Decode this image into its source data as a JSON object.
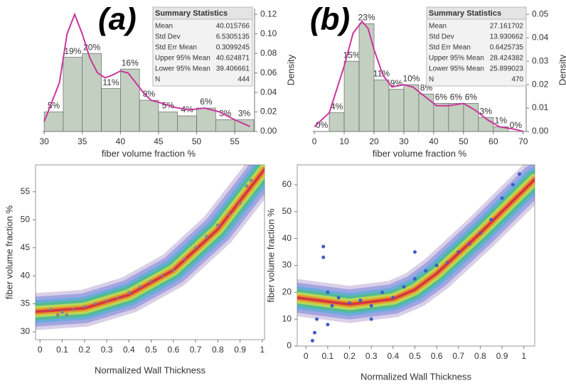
{
  "chart_data": [
    {
      "type": "histogram",
      "panel_label": "(a)",
      "x_label": "fiber volume fraction %",
      "y_label": "Density",
      "y_axis_side": "right",
      "bins": [
        30,
        32.5,
        35,
        37.5,
        40,
        42.5,
        45,
        47.5,
        50,
        52.5,
        55,
        57.5
      ],
      "values": [
        0.02,
        0.076,
        0.08,
        0.044,
        0.064,
        0.032,
        0.02,
        0.016,
        0.024,
        0.012,
        0.012
      ],
      "value_labels": [
        "5%",
        "19%",
        "20%",
        "11%",
        "16%",
        "8%",
        "5%",
        "4%",
        "6%",
        "3%",
        "3%"
      ],
      "color": "#c3cfc0",
      "density_curve": {
        "color": "#c8379b",
        "x": [
          30,
          32,
          33,
          34,
          35,
          36,
          37,
          38,
          39,
          40,
          41,
          42,
          43,
          44,
          45,
          47,
          49,
          51,
          53,
          55,
          57
        ],
        "y": [
          0.01,
          0.05,
          0.1,
          0.12,
          0.1,
          0.075,
          0.06,
          0.055,
          0.058,
          0.062,
          0.06,
          0.05,
          0.04,
          0.032,
          0.03,
          0.025,
          0.022,
          0.024,
          0.02,
          0.012,
          0.005
        ]
      },
      "xlim": [
        29.8,
        57.6
      ],
      "xticks": [
        30,
        35,
        40,
        45,
        50,
        55
      ],
      "ylim": [
        0,
        0.126
      ],
      "yticks": [
        {
          "value": 0,
          "label": "0.00"
        },
        {
          "value": 0.02,
          "label": "0.02"
        },
        {
          "value": 0.04,
          "label": "0.04"
        },
        {
          "value": 0.06,
          "label": "0.06"
        },
        {
          "value": 0.08,
          "label": "0.08"
        },
        {
          "value": 0.1,
          "label": "0.10"
        },
        {
          "value": 0.12,
          "label": "0.12"
        }
      ],
      "summary_statistics": {
        "title": "Summary Statistics",
        "rows": [
          [
            "Mean",
            "40.015766"
          ],
          [
            "Std Dev",
            "6.5305135"
          ],
          [
            "Std Err Mean",
            "0.3099245"
          ],
          [
            "Upper 95% Mean",
            "40.624871"
          ],
          [
            "Lower 95% Mean",
            "39.406661"
          ],
          [
            "N",
            "444"
          ]
        ]
      }
    },
    {
      "type": "histogram",
      "panel_label": "(b)",
      "x_label": "fiber volume fraction %",
      "y_label": "Density",
      "y_axis_side": "right",
      "bins": [
        0,
        5,
        10,
        15,
        20,
        25,
        30,
        35,
        40,
        45,
        50,
        55,
        60,
        65,
        70
      ],
      "values": [
        0,
        0.008,
        0.03,
        0.046,
        0.022,
        0.018,
        0.02,
        0.016,
        0.012,
        0.012,
        0.012,
        0.006,
        0.002,
        0
      ],
      "value_labels": [
        "0%",
        "4%",
        "15%",
        "23%",
        "11%",
        "9%",
        "10%",
        "8%",
        "6%",
        "6%",
        "6%",
        "3%",
        "1%",
        "0%"
      ],
      "color": "#c3cfc0",
      "density_curve": {
        "color": "#c8379b",
        "x": [
          0,
          5,
          10,
          13,
          16,
          18,
          20,
          23,
          26,
          30,
          33,
          37,
          41,
          45,
          50,
          54,
          58,
          62,
          67,
          70
        ],
        "y": [
          0.002,
          0.008,
          0.028,
          0.042,
          0.047,
          0.044,
          0.035,
          0.024,
          0.019,
          0.02,
          0.019,
          0.015,
          0.011,
          0.011,
          0.012,
          0.009,
          0.005,
          0.002,
          0.001,
          0
        ]
      },
      "xlim": [
        -0.5,
        71
      ],
      "xticks": [
        0,
        10,
        20,
        30,
        40,
        50,
        60,
        70
      ],
      "ylim": [
        0,
        0.0525
      ],
      "yticks": [
        {
          "value": 0,
          "label": "0.00"
        },
        0.01,
        0.02,
        0.03,
        0.04,
        0.05
      ],
      "summary_statistics": {
        "title": "Summary Statistics",
        "rows": [
          [
            "Mean",
            "27.161702"
          ],
          [
            "Std Dev",
            "13.930662"
          ],
          [
            "Std Err Mean",
            "0.6425735"
          ],
          [
            "Upper 95% Mean",
            "28.424382"
          ],
          [
            "Lower 95% Mean",
            "25.899023"
          ],
          [
            "N",
            "470"
          ]
        ]
      }
    },
    {
      "type": "scatter",
      "x_label": "Normalized Wall Thickness",
      "y_label": "fiber volume fraction %",
      "color": "#888888",
      "x": [
        0.05,
        0.08,
        0.1,
        0.12,
        0.15,
        0.2,
        0.25,
        0.3,
        0.35,
        0.4,
        0.45,
        0.5,
        0.55,
        0.6,
        0.65,
        0.7,
        0.75,
        0.8,
        0.85,
        0.9,
        0.93,
        0.95
      ],
      "values": [
        34,
        33,
        33.5,
        33,
        34,
        34.5,
        35,
        35.5,
        36,
        37,
        38,
        39,
        40,
        41,
        43,
        45,
        47,
        49,
        51,
        53,
        56,
        57
      ],
      "fit": {
        "color": "#c8375a",
        "x": [
          -0.02,
          0.2,
          0.4,
          0.6,
          0.8,
          1.01
        ],
        "y": [
          33.6,
          34.2,
          36.6,
          41,
          48.3,
          59
        ]
      },
      "xlim": [
        -0.02,
        1.01
      ],
      "xticks": [
        0,
        0.1,
        0.2,
        0.3,
        0.4,
        0.5,
        0.6,
        0.7,
        0.8,
        0.9,
        1
      ],
      "ylim": [
        28.6,
        59.8
      ],
      "yticks": [
        30,
        35,
        40,
        45,
        50,
        55
      ]
    },
    {
      "type": "scatter",
      "x_label": "Normalized Wall Thickness",
      "y_label": "fiber volume fraction %",
      "color": "#3d5ec9",
      "x": [
        0.03,
        0.04,
        0.05,
        0.08,
        0.08,
        0.1,
        0.1,
        0.12,
        0.15,
        0.2,
        0.25,
        0.3,
        0.3,
        0.35,
        0.4,
        0.45,
        0.5,
        0.5,
        0.55,
        0.6,
        0.65,
        0.7,
        0.75,
        0.8,
        0.85,
        0.9,
        0.95,
        0.98
      ],
      "values": [
        2,
        5,
        10,
        37,
        33,
        20,
        8,
        15,
        18,
        16,
        17,
        15,
        10,
        20,
        18,
        22,
        25,
        35,
        28,
        30,
        31,
        35,
        38,
        42,
        47,
        55,
        60,
        64
      ],
      "fit": {
        "color": "#c8375a",
        "x": [
          -0.04,
          0.2,
          0.4,
          0.5,
          0.6,
          0.8,
          1.05
        ],
        "y": [
          18,
          15.5,
          17.5,
          21,
          27,
          42,
          62
        ]
      },
      "xlim": [
        -0.04,
        1.05
      ],
      "xticks": [
        0,
        0.1,
        0.2,
        0.3,
        0.4,
        0.5,
        0.6,
        0.7,
        0.8,
        0.9,
        1
      ],
      "ylim": [
        0,
        67.4
      ],
      "yticks": [
        0,
        10,
        20,
        30,
        40,
        50,
        60
      ]
    }
  ]
}
